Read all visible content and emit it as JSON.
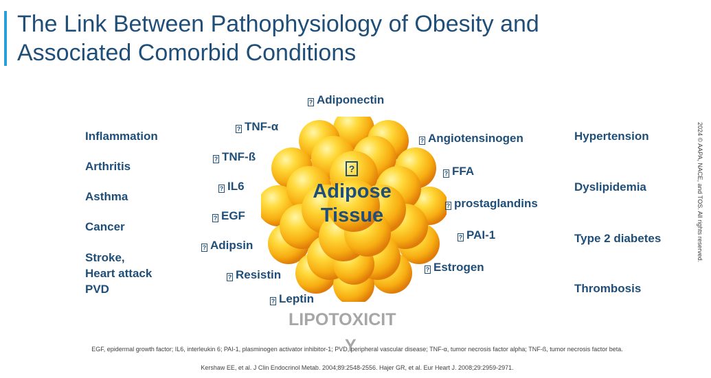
{
  "title": {
    "line1": "The Link Between Pathophysiology of Obesity and",
    "line2": "Associated Comorbid Conditions"
  },
  "center": {
    "glyph": "?",
    "line1": "Adipose",
    "line2": "Tissue"
  },
  "glyph": "?",
  "left_conditions": [
    "Inflammation",
    "Arthritis",
    "Asthma",
    "Cancer",
    "Stroke,",
    "Heart attack",
    "PVD"
  ],
  "right_conditions": [
    "Hypertension",
    "Dyslipidemia",
    "Type 2 diabetes",
    "Thrombosis"
  ],
  "factors": [
    "Adiponectin",
    "TNF-α",
    "TNF-ß",
    "IL6",
    "EGF",
    "Adipsin",
    "Resistin",
    "Leptin",
    "Angiotensinogen",
    "FFA",
    "prostaglandins",
    "PAI-1",
    "Estrogen"
  ],
  "lipotoxicity": {
    "main": "LIPOTOXICIT",
    "tail": "Y"
  },
  "footnote": "EGF, epidermal growth factor; IL6, interleukin 6; PAI-1, plasminogen activator inhibitor-1; PVD, peripheral vascular disease; TNF-α, tumor necrosis factor alpha; TNF-ß, tumor necrosis factor beta.",
  "reference": "Kershaw EE, et al. J Clin Endocrinol Metab. 2004;89:2548-2556. Hajer GR, et al. Eur Heart J. 2008;29:2959-2971.",
  "copyright": "2024 © AAPA, NACE, and TOS. All rights reserved.",
  "colors": {
    "text": "#1f4e79",
    "accent": "#2a9fd6",
    "blob_light": "#ffe96b",
    "blob_mid": "#ffc21a",
    "blob_dark": "#e8820c",
    "lipotoxicity": "#a6a6a6"
  }
}
